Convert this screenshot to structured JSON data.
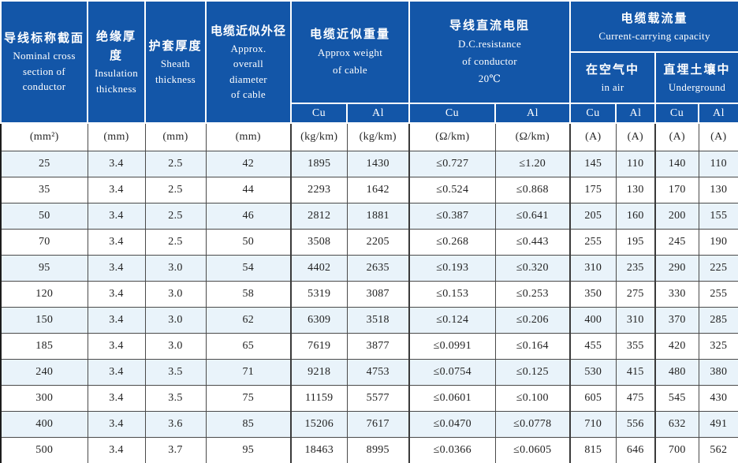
{
  "colors": {
    "header_bg": "#1356a8",
    "header_text": "#ffffff",
    "row_alt": "#e9f3fa",
    "grid_line": "#4a4a4a"
  },
  "table": {
    "header": {
      "nominal": {
        "zh": "导线标称截面",
        "en": "Nominal cross\nsection of\nconductor"
      },
      "insulation": {
        "zh": "绝缘厚度",
        "en": "Insulation\nthickness"
      },
      "sheath": {
        "zh": "护套厚度",
        "en": "Sheath\nthickness"
      },
      "diameter": {
        "zh": "电缆近似外径",
        "en": "Approx.\noverall\ndiameter\nof cable"
      },
      "weight": {
        "zh": "电缆近似重量",
        "en": "Approx weight\nof cable"
      },
      "dc": {
        "zh": "导线直流电阻",
        "en": "D.C.resistance\nof conductor\n20℃"
      },
      "capacity": {
        "zh": "电缆载流量",
        "en": "Current-carrying capacity"
      },
      "in_air": {
        "zh": "在空气中",
        "en": "in air"
      },
      "underground": {
        "zh": "直埋土壤中",
        "en": "Underground"
      },
      "cu": "Cu",
      "al": "Al"
    },
    "units": [
      "(mm²)",
      "(mm)",
      "(mm)",
      "(mm)",
      "(kg/km)",
      "(kg/km)",
      "(Ω/km)",
      "(Ω/km)",
      "(A)",
      "(A)",
      "(A)",
      "(A)"
    ],
    "rows": [
      [
        "25",
        "3.4",
        "2.5",
        "42",
        "1895",
        "1430",
        "≤0.727",
        "≤1.20",
        "145",
        "110",
        "140",
        "110"
      ],
      [
        "35",
        "3.4",
        "2.5",
        "44",
        "2293",
        "1642",
        "≤0.524",
        "≤0.868",
        "175",
        "130",
        "170",
        "130"
      ],
      [
        "50",
        "3.4",
        "2.5",
        "46",
        "2812",
        "1881",
        "≤0.387",
        "≤0.641",
        "205",
        "160",
        "200",
        "155"
      ],
      [
        "70",
        "3.4",
        "2.5",
        "50",
        "3508",
        "2205",
        "≤0.268",
        "≤0.443",
        "255",
        "195",
        "245",
        "190"
      ],
      [
        "95",
        "3.4",
        "3.0",
        "54",
        "4402",
        "2635",
        "≤0.193",
        "≤0.320",
        "310",
        "235",
        "290",
        "225"
      ],
      [
        "120",
        "3.4",
        "3.0",
        "58",
        "5319",
        "3087",
        "≤0.153",
        "≤0.253",
        "350",
        "275",
        "330",
        "255"
      ],
      [
        "150",
        "3.4",
        "3.0",
        "62",
        "6309",
        "3518",
        "≤0.124",
        "≤0.206",
        "400",
        "310",
        "370",
        "285"
      ],
      [
        "185",
        "3.4",
        "3.0",
        "65",
        "7619",
        "3877",
        "≤0.0991",
        "≤0.164",
        "455",
        "355",
        "420",
        "325"
      ],
      [
        "240",
        "3.4",
        "3.5",
        "71",
        "9218",
        "4753",
        "≤0.0754",
        "≤0.125",
        "530",
        "415",
        "480",
        "380"
      ],
      [
        "300",
        "3.4",
        "3.5",
        "75",
        "11159",
        "5577",
        "≤0.0601",
        "≤0.100",
        "605",
        "475",
        "545",
        "430"
      ],
      [
        "400",
        "3.4",
        "3.6",
        "85",
        "15206",
        "7617",
        "≤0.0470",
        "≤0.0778",
        "710",
        "556",
        "632",
        "491"
      ],
      [
        "500",
        "3.4",
        "3.7",
        "95",
        "18463",
        "8995",
        "≤0.0366",
        "≤0.0605",
        "815",
        "646",
        "700",
        "562"
      ]
    ]
  }
}
